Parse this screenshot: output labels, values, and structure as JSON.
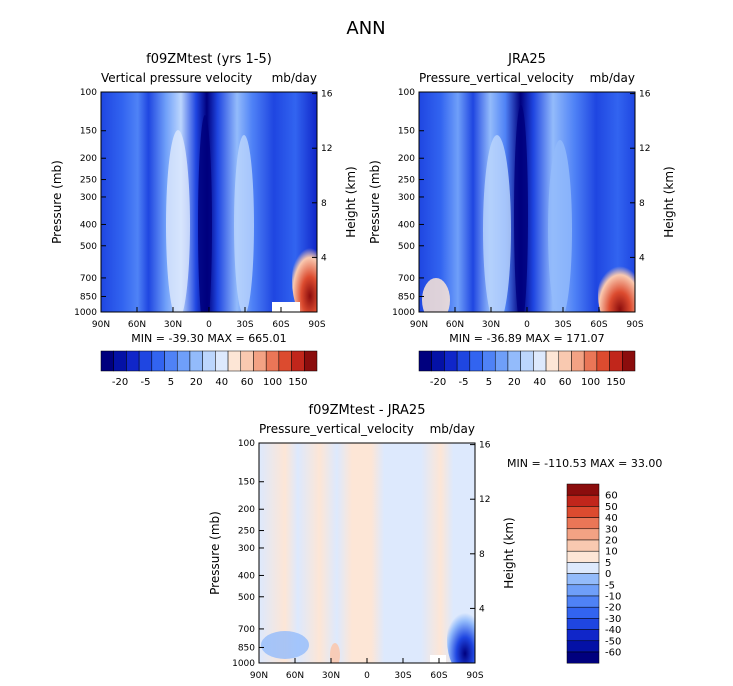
{
  "page": {
    "title": "ANN"
  },
  "colors": {
    "diverging_blue_red": [
      "#00007e",
      "#0411a6",
      "#1026c9",
      "#1f46e1",
      "#3264f0",
      "#4f82f6",
      "#6f9ff9",
      "#93bbfb",
      "#bcd6fd",
      "#dde9fd",
      "#fde6d6",
      "#f9c9b0",
      "#f3a284",
      "#ea7657",
      "#dc4b2f",
      "#c1261b",
      "#8b0d0d"
    ]
  },
  "chart_data": [
    {
      "type": "heatmap",
      "id": "model",
      "title": "f09ZMtest (yrs 1-5)",
      "subtitle_left": "Vertical pressure velocity",
      "subtitle_right": "mb/day",
      "ylabel": "Pressure (mb)",
      "ylabel_right": "Height (km)",
      "x_ticks": [
        "90N",
        "60N",
        "30N",
        "0",
        "30S",
        "60S",
        "90S"
      ],
      "y_ticks": [
        "100",
        "150",
        "200",
        "250",
        "300",
        "400",
        "500",
        "700",
        "850",
        "1000"
      ],
      "y_right_ticks": [
        "16",
        "12",
        "8",
        "4"
      ],
      "ylim": [
        1000,
        100
      ],
      "stats": "MIN = -39.30   MAX = 665.01",
      "colorbar_orientation": "horizontal",
      "colorbar_labels": [
        "-20",
        "-5",
        "5",
        "20",
        "40",
        "60",
        "100",
        "150"
      ],
      "fields": [
        {
          "lat": 0,
          "p": 500,
          "value": -30
        },
        {
          "lat": 20,
          "p": 400,
          "value": 20
        },
        {
          "lat": -25,
          "p": 400,
          "value": 15
        },
        {
          "lat": 60,
          "p": 400,
          "value": 5
        },
        {
          "lat": -75,
          "p": 850,
          "value": 150
        }
      ]
    },
    {
      "type": "heatmap",
      "id": "obs",
      "title": "JRA25",
      "subtitle_left": "Pressure_vertical_velocity",
      "subtitle_right": "mb/day",
      "ylabel": "Pressure (mb)",
      "ylabel_right": "Height (km)",
      "x_ticks": [
        "90N",
        "60N",
        "30N",
        "0",
        "30S",
        "60S",
        "90S"
      ],
      "y_ticks": [
        "100",
        "150",
        "200",
        "250",
        "300",
        "400",
        "500",
        "700",
        "850",
        "1000"
      ],
      "y_right_ticks": [
        "16",
        "12",
        "8",
        "4"
      ],
      "ylim": [
        1000,
        100
      ],
      "stats": "MIN = -36.89   MAX = 171.07",
      "colorbar_orientation": "horizontal",
      "colorbar_labels": [
        "-20",
        "-5",
        "5",
        "20",
        "40",
        "60",
        "100",
        "150"
      ],
      "fields": [
        {
          "lat": 5,
          "p": 500,
          "value": -30
        },
        {
          "lat": 25,
          "p": 400,
          "value": 20
        },
        {
          "lat": -25,
          "p": 400,
          "value": 15
        },
        {
          "lat": 70,
          "p": 850,
          "value": 20
        },
        {
          "lat": -75,
          "p": 850,
          "value": 150
        }
      ]
    },
    {
      "type": "heatmap",
      "id": "diff",
      "title": "f09ZMtest - JRA25",
      "subtitle_left": "Pressure_vertical_velocity",
      "subtitle_right": "mb/day",
      "ylabel": "Pressure (mb)",
      "ylabel_right": "Height (km)",
      "x_ticks": [
        "90N",
        "60N",
        "30N",
        "0",
        "30S",
        "60S",
        "90S"
      ],
      "y_ticks": [
        "100",
        "150",
        "200",
        "250",
        "300",
        "400",
        "500",
        "700",
        "850",
        "1000"
      ],
      "y_right_ticks": [
        "16",
        "12",
        "8",
        "4"
      ],
      "ylim": [
        1000,
        100
      ],
      "stats": "MIN = -110.53   MAX =  33.00",
      "colorbar_orientation": "vertical",
      "colorbar_labels": [
        "60",
        "50",
        "40",
        "30",
        "20",
        "10",
        "5",
        "0",
        "-5",
        "-10",
        "-20",
        "-30",
        "-40",
        "-50",
        "-60"
      ],
      "fields": [
        {
          "lat": 45,
          "p": 400,
          "value": 2
        },
        {
          "lat": 10,
          "p": 400,
          "value": -2
        },
        {
          "lat": -75,
          "p": 850,
          "value": -60
        }
      ]
    }
  ]
}
